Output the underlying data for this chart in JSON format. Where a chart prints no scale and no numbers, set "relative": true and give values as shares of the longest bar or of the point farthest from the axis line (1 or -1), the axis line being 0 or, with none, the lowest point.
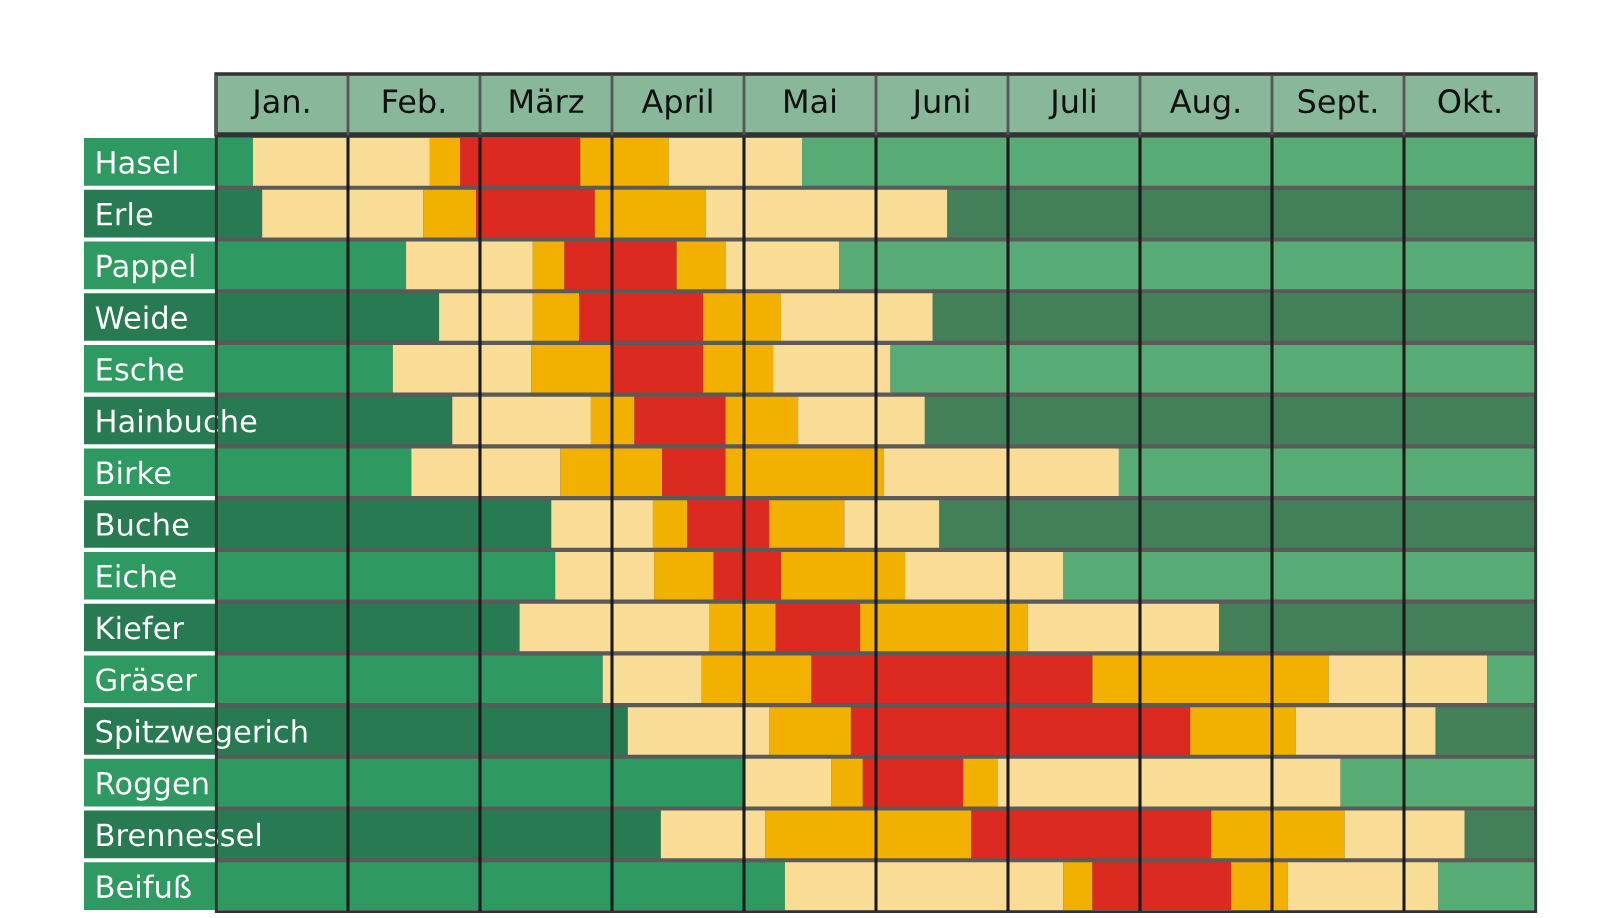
{
  "chart_data": {
    "type": "bar",
    "orientation": "horizontal",
    "stacked": true,
    "relative": true,
    "grid": "x",
    "categories": [
      "Hasel",
      "Erle",
      "Pappel",
      "Weide",
      "Esche",
      "Hainbuche",
      "Birke",
      "Buche",
      "Eiche",
      "Kiefer",
      "Gräser",
      "Spitzwegerich",
      "Roggen",
      "Brennessel",
      "Beifuß"
    ],
    "annotations": [
      "Jan.",
      "Feb.",
      "März",
      "April",
      "Mai",
      "Juni",
      "Juli",
      "Aug.",
      "Sept.",
      "Okt."
    ],
    "series": [
      {
        "values": [
          0.028,
          0.035,
          0.144,
          0.169,
          0.134,
          0.179,
          0.148,
          0.254,
          0.257,
          0.23,
          0.293,
          0.312,
          0.4,
          0.337,
          0.431
        ],
        "colors": [
          "#2e9a62",
          "#287a52",
          "#2e9a62",
          "#287a52",
          "#2e9a62",
          "#287a52",
          "#2e9a62",
          "#287a52",
          "#2e9a62",
          "#287a52",
          "#2e9a62",
          "#287a52",
          "#2e9a62",
          "#287a52",
          "#2e9a62"
        ]
      },
      {
        "values": [
          0.134,
          0.122,
          0.096,
          0.071,
          0.105,
          0.105,
          0.113,
          0.077,
          0.075,
          0.144,
          0.075,
          0.107,
          0.066,
          0.079,
          0.211
        ],
        "colors": [
          "#f9dc96",
          "#f9dc96",
          "#f9dc96",
          "#f9dc96",
          "#f9dc96",
          "#f9dc96",
          "#f9dc96",
          "#f9dc96",
          "#f9dc96",
          "#f9dc96",
          "#f9dc96",
          "#f9dc96",
          "#f9dc96",
          "#f9dc96",
          "#f9dc96"
        ]
      },
      {
        "values": [
          0.023,
          0.04,
          0.024,
          0.035,
          0.061,
          0.033,
          0.077,
          0.026,
          0.045,
          0.05,
          0.083,
          0.062,
          0.024,
          0.156,
          0.022
        ],
        "colors": [
          "#f2b000",
          "#f2b000",
          "#f2b000",
          "#f2b000",
          "#f2b000",
          "#f2b000",
          "#f2b000",
          "#f2b000",
          "#f2b000",
          "#f2b000",
          "#f2b000",
          "#f2b000",
          "#f2b000",
          "#f2b000",
          "#f2b000"
        ]
      },
      {
        "values": [
          0.091,
          0.09,
          0.085,
          0.094,
          0.069,
          0.069,
          0.048,
          0.062,
          0.051,
          0.064,
          0.213,
          0.257,
          0.076,
          0.182,
          0.105
        ],
        "colors": [
          "#dc2a20",
          "#dc2a20",
          "#dc2a20",
          "#dc2a20",
          "#dc2a20",
          "#dc2a20",
          "#dc2a20",
          "#dc2a20",
          "#dc2a20",
          "#dc2a20",
          "#dc2a20",
          "#dc2a20",
          "#dc2a20",
          "#dc2a20",
          "#dc2a20"
        ]
      },
      {
        "values": [
          0.067,
          0.084,
          0.037,
          0.059,
          0.053,
          0.055,
          0.12,
          0.057,
          0.094,
          0.127,
          0.179,
          0.08,
          0.026,
          0.101,
          0.043
        ],
        "colors": [
          "#f2b000",
          "#f2b000",
          "#f2b000",
          "#f2b000",
          "#f2b000",
          "#f2b000",
          "#f2b000",
          "#f2b000",
          "#f2b000",
          "#f2b000",
          "#f2b000",
          "#f2b000",
          "#f2b000",
          "#f2b000",
          "#f2b000"
        ]
      },
      {
        "values": [
          0.101,
          0.183,
          0.086,
          0.115,
          0.089,
          0.096,
          0.178,
          0.072,
          0.12,
          0.145,
          0.12,
          0.106,
          0.26,
          0.091,
          0.114
        ],
        "colors": [
          "#f9dc96",
          "#f9dc96",
          "#f9dc96",
          "#f9dc96",
          "#f9dc96",
          "#f9dc96",
          "#f9dc96",
          "#f9dc96",
          "#f9dc96",
          "#f9dc96",
          "#f9dc96",
          "#f9dc96",
          "#f9dc96",
          "#f9dc96",
          "#f9dc96"
        ]
      },
      {
        "values": [
          0.556,
          0.446,
          0.528,
          0.457,
          0.489,
          0.463,
          0.316,
          0.452,
          0.358,
          0.24,
          0.037,
          0.076,
          0.148,
          0.054,
          0.074
        ],
        "colors": [
          "#57ab74",
          "#43805a",
          "#57ab74",
          "#43805a",
          "#57ab74",
          "#43805a",
          "#57ab74",
          "#43805a",
          "#57ab74",
          "#43805a",
          "#57ab74",
          "#43805a",
          "#57ab74",
          "#43805a",
          "#57ab74"
        ]
      }
    ]
  }
}
